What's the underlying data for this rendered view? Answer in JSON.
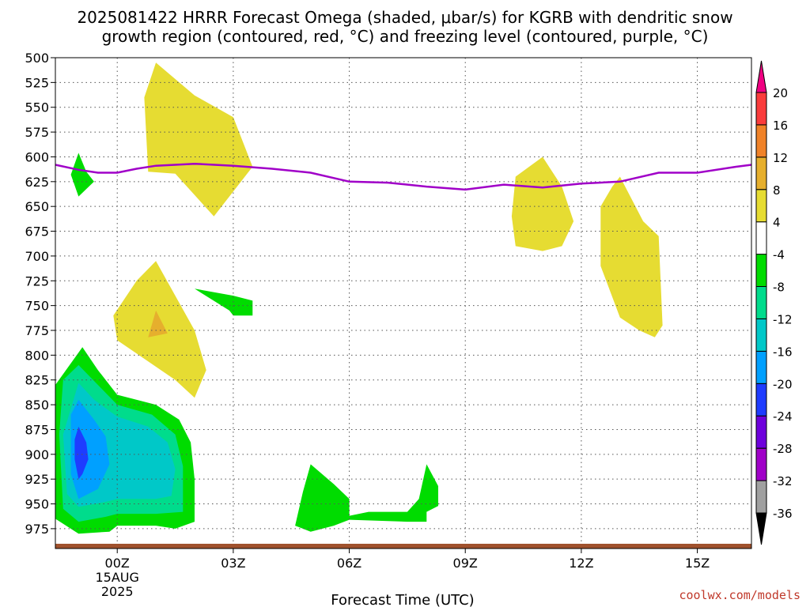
{
  "chart_data": {
    "type": "contour",
    "title_line1": "2025081422 HRRR Forecast Omega (shaded, μbar/s) for KGRB with dendritic snow",
    "title_line2": "growth region (contoured, red, °C) and freezing level (contoured, purple, °C)",
    "xlabel": "Forecast Time (UTC)",
    "x_range": [
      -1.6,
      16.4
    ],
    "y_range": [
      500,
      995
    ],
    "x_ticks": [
      {
        "x": 0,
        "label": "00Z",
        "sub1": "15AUG",
        "sub2": "2025"
      },
      {
        "x": 3,
        "label": "03Z"
      },
      {
        "x": 6,
        "label": "06Z"
      },
      {
        "x": 9,
        "label": "09Z"
      },
      {
        "x": 12,
        "label": "12Z"
      },
      {
        "x": 15,
        "label": "15Z"
      }
    ],
    "y_ticks": [
      500,
      525,
      550,
      575,
      600,
      625,
      650,
      675,
      700,
      725,
      750,
      775,
      800,
      825,
      850,
      875,
      900,
      925,
      950,
      975
    ],
    "grid": true,
    "colorbar": {
      "levels": [
        -36,
        -32,
        -28,
        -24,
        -20,
        -16,
        -12,
        -8,
        -4,
        4,
        8,
        12,
        16,
        20
      ],
      "colors": [
        "#000000",
        "#a0a0a0",
        "#a000c8",
        "#6e00dc",
        "#1e3cff",
        "#00a0ff",
        "#00c8c8",
        "#00dc8c",
        "#00dc00",
        "#ffffff",
        "#e6dc32",
        "#e6af2d",
        "#f08228",
        "#fa3c3c",
        "#f00082"
      ]
    },
    "freezing_level": {
      "color": "#a000c8",
      "points": [
        [
          -1.6,
          608
        ],
        [
          -1,
          613
        ],
        [
          -0.5,
          616
        ],
        [
          0,
          616
        ],
        [
          0.5,
          612
        ],
        [
          1,
          609
        ],
        [
          2,
          607
        ],
        [
          3,
          609
        ],
        [
          4,
          612
        ],
        [
          5,
          616
        ],
        [
          6,
          625
        ],
        [
          7,
          626
        ],
        [
          8,
          630
        ],
        [
          9,
          633
        ],
        [
          10,
          628
        ],
        [
          11,
          631
        ],
        [
          12,
          627
        ],
        [
          13,
          625
        ],
        [
          14,
          616
        ],
        [
          15,
          616
        ],
        [
          16,
          610
        ],
        [
          16.4,
          608
        ]
      ]
    },
    "shaded_regions": [
      {
        "value": "4 to 8",
        "color": "#e6dc32",
        "points": [
          [
            0.7,
            540
          ],
          [
            1,
            505
          ],
          [
            2,
            538
          ],
          [
            3,
            560
          ],
          [
            3.5,
            610
          ],
          [
            2.5,
            660
          ],
          [
            1.5,
            617
          ],
          [
            0.8,
            615
          ]
        ]
      },
      {
        "value": "4 to 8",
        "color": "#e6dc32",
        "points": [
          [
            -0.1,
            760
          ],
          [
            0.5,
            725
          ],
          [
            1,
            705
          ],
          [
            2,
            775
          ],
          [
            2.3,
            815
          ],
          [
            2,
            843
          ],
          [
            1.5,
            825
          ],
          [
            0,
            785
          ]
        ]
      },
      {
        "value": "8 to 12",
        "color": "#e6af2d",
        "points": [
          [
            1,
            755
          ],
          [
            1.3,
            778
          ],
          [
            0.8,
            782
          ]
        ]
      },
      {
        "value": "4 to 8",
        "color": "#e6dc32",
        "points": [
          [
            10.3,
            620
          ],
          [
            11,
            600
          ],
          [
            11.5,
            630
          ],
          [
            11.8,
            665
          ],
          [
            11.5,
            690
          ],
          [
            11,
            695
          ],
          [
            10.3,
            690
          ],
          [
            10.2,
            660
          ]
        ]
      },
      {
        "value": "4 to 8",
        "color": "#e6dc32",
        "points": [
          [
            13,
            620
          ],
          [
            13.6,
            665
          ],
          [
            14,
            680
          ],
          [
            14.1,
            770
          ],
          [
            13.9,
            782
          ],
          [
            13.5,
            775
          ],
          [
            13,
            762
          ],
          [
            12.5,
            710
          ],
          [
            12.5,
            650
          ],
          [
            12.8,
            630
          ]
        ]
      },
      {
        "value": "-8 to -4",
        "color": "#00dc00",
        "points": [
          [
            -1,
            596
          ],
          [
            -0.8,
            615
          ],
          [
            -0.6,
            625
          ],
          [
            -1,
            640
          ],
          [
            -1.2,
            618
          ]
        ]
      },
      {
        "value": "-8 to -4",
        "color": "#00dc00",
        "points": [
          [
            2,
            733
          ],
          [
            3,
            740
          ],
          [
            3.5,
            745
          ],
          [
            3.5,
            760
          ],
          [
            3,
            760
          ],
          [
            2.9,
            755
          ]
        ]
      },
      {
        "value": "-8 to -4",
        "color": "#00dc00",
        "points": [
          [
            -0.9,
            792
          ],
          [
            -0.5,
            815
          ],
          [
            0,
            840
          ],
          [
            1,
            850
          ],
          [
            1.6,
            865
          ],
          [
            1.9,
            888
          ],
          [
            2,
            925
          ],
          [
            2,
            968
          ],
          [
            1.5,
            975
          ],
          [
            1,
            972
          ],
          [
            0,
            972
          ],
          [
            -0.2,
            978
          ],
          [
            -1,
            980
          ],
          [
            -1.6,
            965
          ],
          [
            -1.6,
            830
          ]
        ]
      },
      {
        "value": "-12 to -8",
        "color": "#00dc8c",
        "points": [
          [
            -1,
            810
          ],
          [
            -0.5,
            830
          ],
          [
            0,
            850
          ],
          [
            0.9,
            860
          ],
          [
            1.5,
            880
          ],
          [
            1.7,
            912
          ],
          [
            1.7,
            958
          ],
          [
            1,
            960
          ],
          [
            0,
            960
          ],
          [
            -0.3,
            963
          ],
          [
            -1,
            968
          ],
          [
            -1.4,
            955
          ],
          [
            -1.5,
            880
          ],
          [
            -1.4,
            825
          ]
        ]
      },
      {
        "value": "-16 to -12",
        "color": "#00c8c8",
        "points": [
          [
            -1,
            828
          ],
          [
            -0.6,
            845
          ],
          [
            0,
            862
          ],
          [
            0.8,
            872
          ],
          [
            1.3,
            888
          ],
          [
            1.5,
            915
          ],
          [
            1.4,
            942
          ],
          [
            1,
            945
          ],
          [
            0,
            945
          ],
          [
            -0.3,
            948
          ],
          [
            -1,
            953
          ],
          [
            -1.3,
            940
          ],
          [
            -1.4,
            880
          ]
        ]
      },
      {
        "value": "-20 to -16",
        "color": "#00a0ff",
        "points": [
          [
            -1,
            845
          ],
          [
            -0.6,
            865
          ],
          [
            -0.3,
            882
          ],
          [
            -0.2,
            910
          ],
          [
            -0.5,
            935
          ],
          [
            -1,
            945
          ],
          [
            -1.2,
            920
          ],
          [
            -1.2,
            860
          ]
        ]
      },
      {
        "value": "-24 to -20",
        "color": "#1e3cff",
        "points": [
          [
            -1,
            872
          ],
          [
            -0.8,
            888
          ],
          [
            -0.75,
            905
          ],
          [
            -0.9,
            920
          ],
          [
            -1,
            925
          ],
          [
            -1.1,
            905
          ],
          [
            -1.1,
            885
          ]
        ]
      },
      {
        "value": "-8 to -4",
        "color": "#00dc00",
        "points": [
          [
            5,
            910
          ],
          [
            5.6,
            930
          ],
          [
            6,
            945
          ],
          [
            6,
            962
          ],
          [
            6.5,
            958
          ],
          [
            7.5,
            958
          ],
          [
            7.8,
            945
          ],
          [
            8,
            910
          ],
          [
            8.3,
            932
          ],
          [
            8.3,
            952
          ],
          [
            8,
            958
          ],
          [
            8,
            968
          ],
          [
            7.5,
            968
          ],
          [
            6,
            966
          ],
          [
            5.6,
            972
          ],
          [
            5,
            978
          ],
          [
            4.6,
            972
          ],
          [
            4.8,
            938
          ]
        ]
      }
    ],
    "surface_color": "#a0522d",
    "credit": "coolwx.com/models"
  }
}
